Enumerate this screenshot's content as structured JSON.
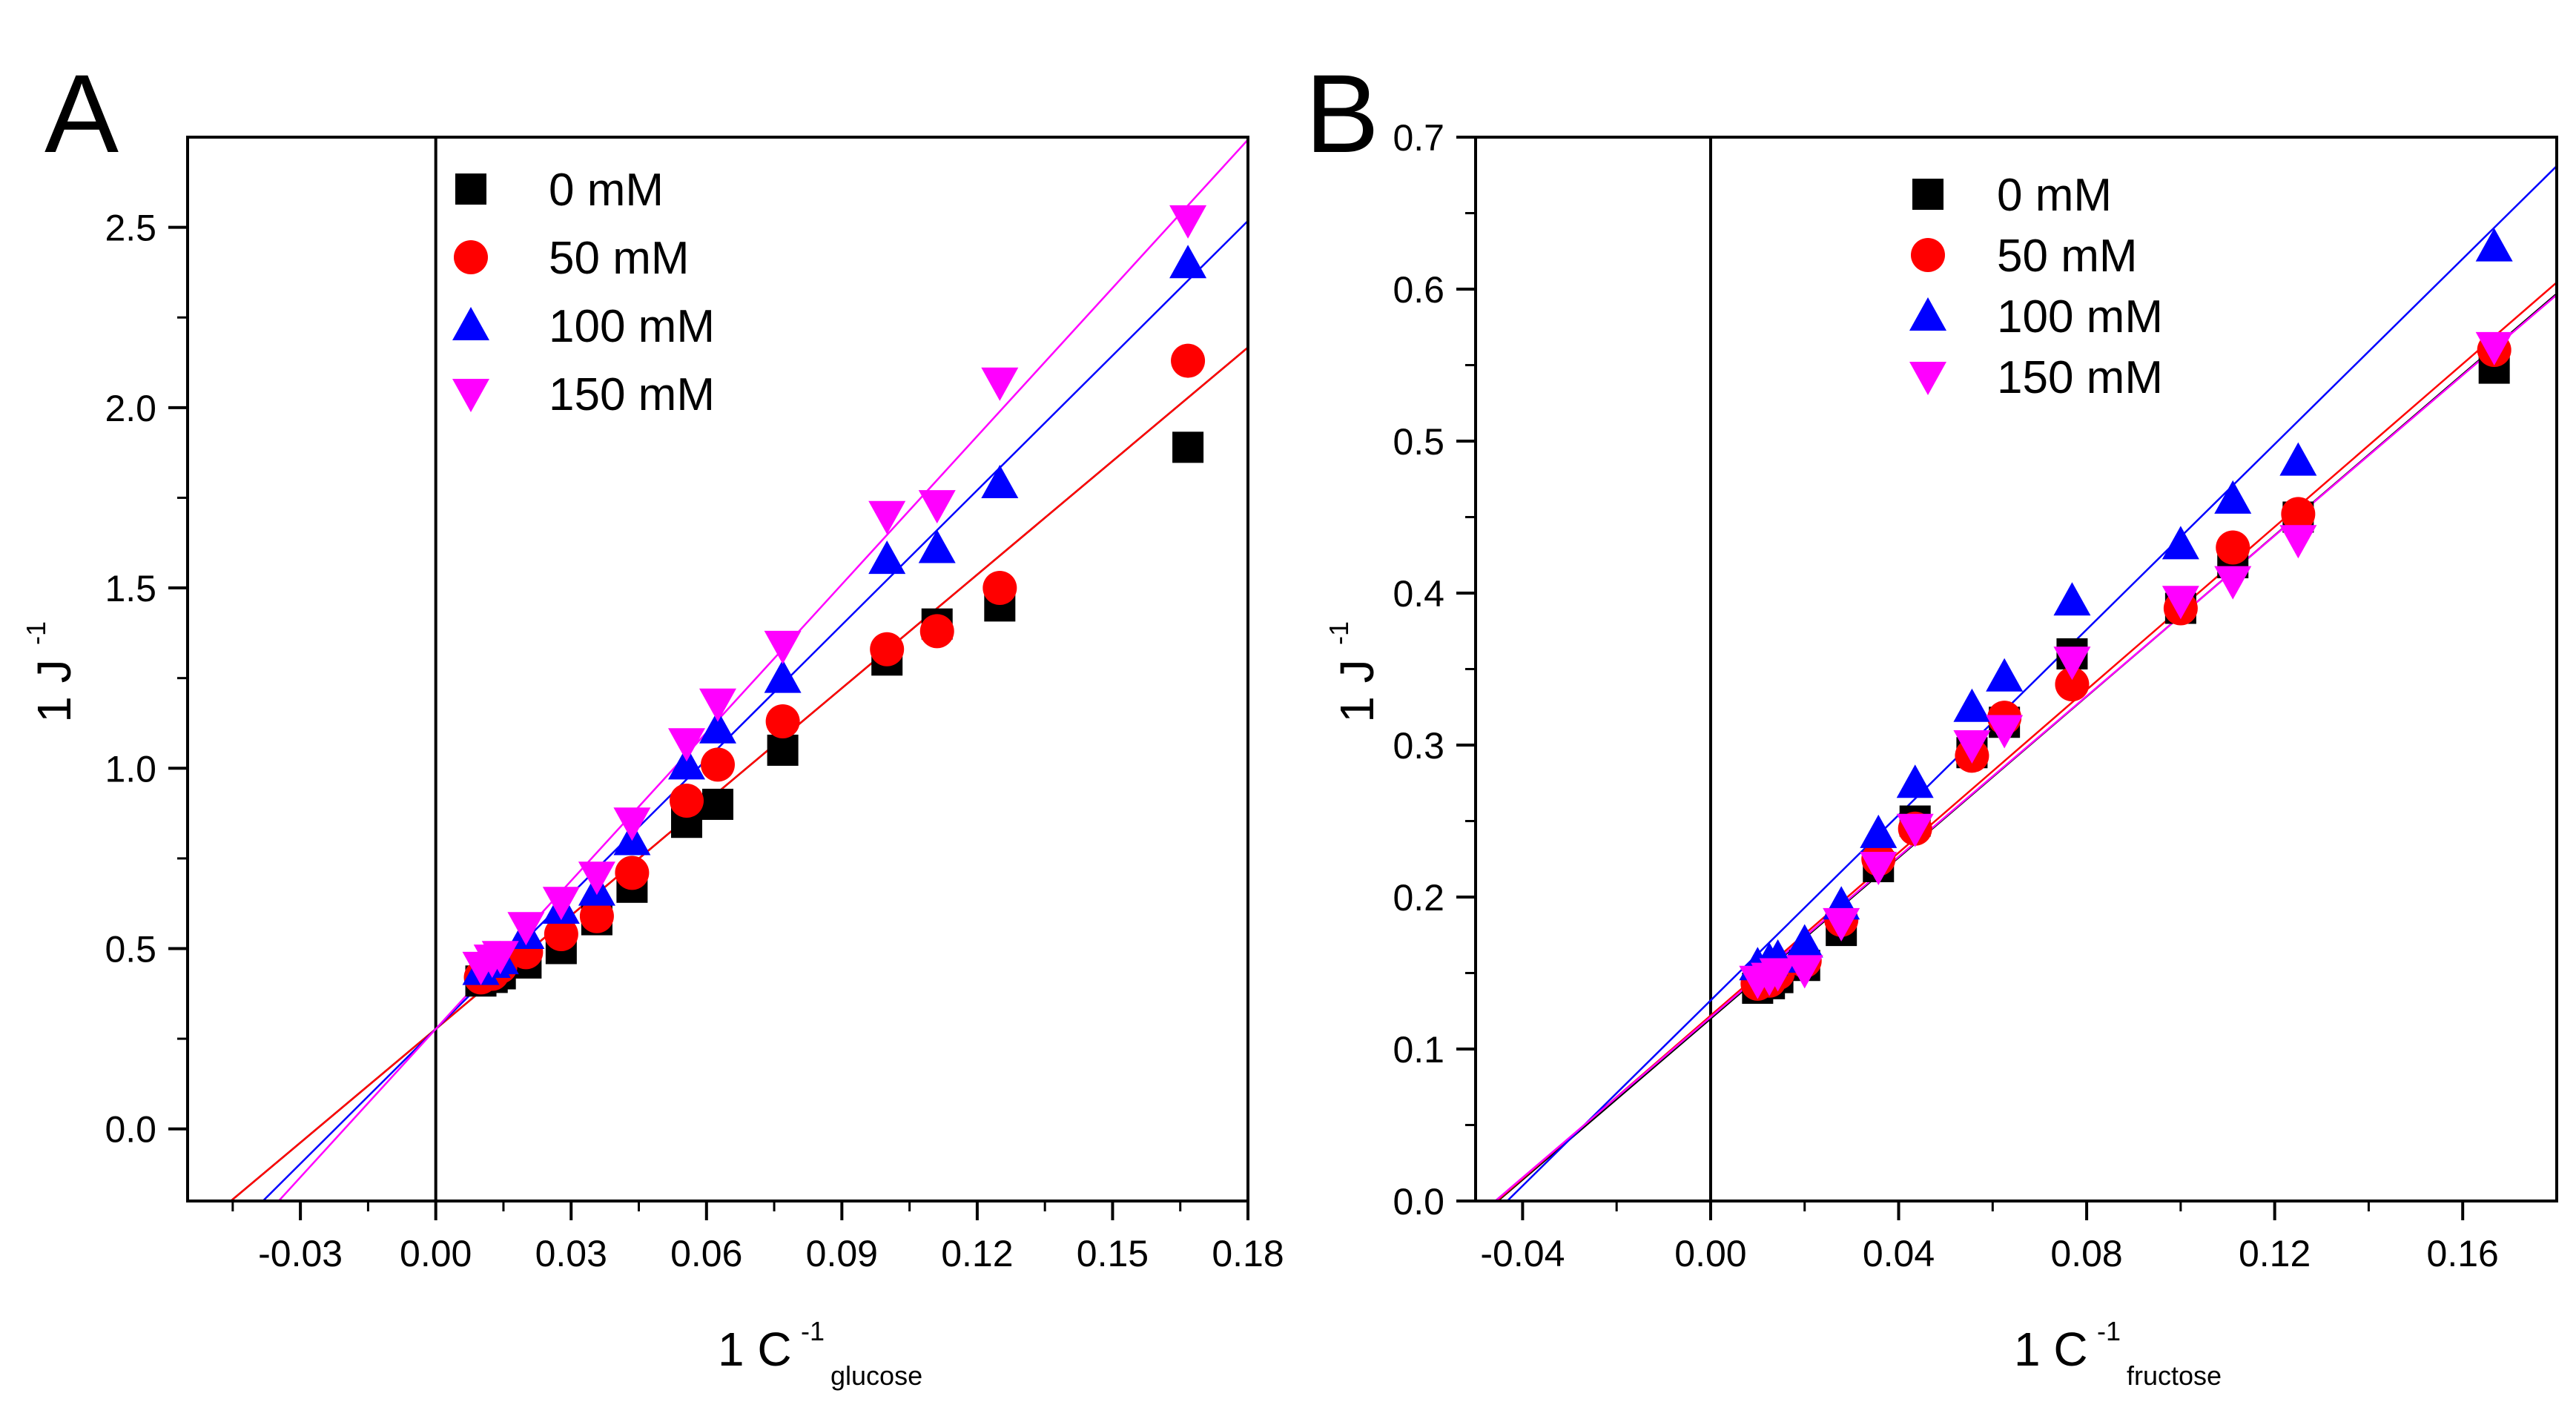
{
  "chart_data": [
    {
      "type": "scatter",
      "panel": "A",
      "xlabel_main": "1 C",
      "xlabel_sup": "-1",
      "xlabel_sub": "glucose",
      "ylabel_main": "1 J",
      "ylabel_sup": "-1",
      "xlim": [
        -0.055,
        0.18
      ],
      "ylim": [
        -0.2,
        2.75
      ],
      "xticks": [
        -0.03,
        0.0,
        0.03,
        0.06,
        0.09,
        0.12,
        0.15,
        0.18
      ],
      "xtick_labels": [
        "-0.03",
        "0.00",
        "0.03",
        "0.06",
        "0.09",
        "0.12",
        "0.15",
        "0.18"
      ],
      "xminor": [
        -0.045,
        -0.015,
        0.015,
        0.045,
        0.075,
        0.105,
        0.135,
        0.165
      ],
      "yticks": [
        0.0,
        0.5,
        1.0,
        1.5,
        2.0,
        2.5
      ],
      "ytick_labels": [
        "0.0",
        "0.5",
        "1.0",
        "1.5",
        "2.0",
        "2.5"
      ],
      "yminor": [
        0.25,
        0.75,
        1.25,
        1.75,
        2.25
      ],
      "legend_position": "top-left",
      "series": [
        {
          "name": "0 mM",
          "marker": "square",
          "color": "#000000",
          "x": [
            0.01,
            0.0125,
            0.0143,
            0.02,
            0.0278,
            0.0357,
            0.0435,
            0.0556,
            0.0625,
            0.0769,
            0.1,
            0.1111,
            0.125,
            0.1667
          ],
          "y": [
            0.41,
            0.42,
            0.43,
            0.46,
            0.5,
            0.58,
            0.67,
            0.85,
            0.9,
            1.05,
            1.3,
            1.4,
            1.45,
            1.89
          ],
          "fit": {
            "slope": 10.5,
            "intercept": 0.277
          }
        },
        {
          "name": "50 mM",
          "marker": "circle",
          "color": "#ff0000",
          "x": [
            0.01,
            0.0125,
            0.0143,
            0.02,
            0.0278,
            0.0357,
            0.0435,
            0.0556,
            0.0625,
            0.0769,
            0.1,
            0.1111,
            0.125,
            0.1667
          ],
          "y": [
            0.42,
            0.43,
            0.45,
            0.49,
            0.54,
            0.59,
            0.71,
            0.91,
            1.01,
            1.13,
            1.33,
            1.38,
            1.5,
            2.13
          ],
          "fit": {
            "slope": 10.5,
            "intercept": 0.277
          }
        },
        {
          "name": "100 mM",
          "marker": "triangle-up",
          "color": "#0000ff",
          "x": [
            0.01,
            0.0125,
            0.0143,
            0.02,
            0.0278,
            0.0357,
            0.0435,
            0.0556,
            0.0625,
            0.0769,
            0.1,
            0.1111,
            0.125,
            0.1667
          ],
          "y": [
            0.44,
            0.46,
            0.47,
            0.54,
            0.61,
            0.66,
            0.8,
            1.01,
            1.11,
            1.25,
            1.58,
            1.61,
            1.79,
            2.4
          ],
          "fit": {
            "slope": 12.45,
            "intercept": 0.277
          }
        },
        {
          "name": "150 mM",
          "marker": "triangle-down",
          "color": "#ff00ff",
          "x": [
            0.01,
            0.0125,
            0.0143,
            0.02,
            0.0278,
            0.0357,
            0.0435,
            0.0556,
            0.0625,
            0.0769,
            0.1,
            0.1111,
            0.125,
            0.1667
          ],
          "y": [
            0.45,
            0.47,
            0.48,
            0.56,
            0.63,
            0.7,
            0.85,
            1.07,
            1.18,
            1.34,
            1.7,
            1.73,
            2.07,
            2.52
          ],
          "fit": {
            "slope": 13.7,
            "intercept": 0.277
          }
        }
      ]
    },
    {
      "type": "scatter",
      "panel": "B",
      "xlabel_main": "1 C",
      "xlabel_sup": "-1",
      "xlabel_sub": "fructose",
      "ylabel_main": "1 J",
      "ylabel_sup": "-1",
      "xlim": [
        -0.05,
        0.18
      ],
      "ylim": [
        0.0,
        0.7
      ],
      "xticks": [
        -0.04,
        0.0,
        0.04,
        0.08,
        0.12,
        0.16
      ],
      "xtick_labels": [
        "-0.04",
        "0.00",
        "0.04",
        "0.08",
        "0.12",
        "0.16"
      ],
      "xminor": [
        -0.02,
        0.02,
        0.06,
        0.1,
        0.14
      ],
      "yticks": [
        0.0,
        0.1,
        0.2,
        0.3,
        0.4,
        0.5,
        0.6,
        0.7
      ],
      "ytick_labels": [
        "0.0",
        "0.1",
        "0.2",
        "0.3",
        "0.4",
        "0.5",
        "0.6",
        "0.7"
      ],
      "yminor": [
        0.05,
        0.15,
        0.25,
        0.35,
        0.45,
        0.55,
        0.65
      ],
      "legend_position": "top-center",
      "series": [
        {
          "name": "0 mM",
          "marker": "square",
          "color": "#000000",
          "x": [
            0.01,
            0.0125,
            0.0143,
            0.02,
            0.0278,
            0.0357,
            0.0435,
            0.0556,
            0.0625,
            0.0769,
            0.1,
            0.1111,
            0.125,
            0.1667
          ],
          "y": [
            0.14,
            0.143,
            0.147,
            0.155,
            0.178,
            0.22,
            0.25,
            0.295,
            0.315,
            0.36,
            0.39,
            0.42,
            0.45,
            0.548
          ],
          "fit": {
            "slope": 2.65,
            "intercept": 0.12
          }
        },
        {
          "name": "50 mM",
          "marker": "circle",
          "color": "#ff0000",
          "x": [
            0.01,
            0.0125,
            0.0143,
            0.02,
            0.0278,
            0.0357,
            0.0435,
            0.0556,
            0.0625,
            0.0769,
            0.1,
            0.1111,
            0.125,
            0.1667
          ],
          "y": [
            0.143,
            0.145,
            0.15,
            0.158,
            0.185,
            0.225,
            0.245,
            0.293,
            0.318,
            0.34,
            0.39,
            0.43,
            0.452,
            0.56
          ],
          "fit": {
            "slope": 2.68,
            "intercept": 0.122
          }
        },
        {
          "name": "100 mM",
          "marker": "triangle-up",
          "color": "#0000ff",
          "x": [
            0.01,
            0.0125,
            0.0143,
            0.02,
            0.0278,
            0.0357,
            0.0435,
            0.0556,
            0.0625,
            0.0769,
            0.1,
            0.1111,
            0.125,
            0.1667
          ],
          "y": [
            0.155,
            0.158,
            0.16,
            0.17,
            0.195,
            0.242,
            0.275,
            0.325,
            0.345,
            0.395,
            0.432,
            0.462,
            0.487,
            0.628
          ],
          "fit": {
            "slope": 3.05,
            "intercept": 0.132
          }
        },
        {
          "name": "150 mM",
          "marker": "triangle-down",
          "color": "#ff00ff",
          "x": [
            0.01,
            0.0125,
            0.0143,
            0.02,
            0.0278,
            0.0357,
            0.0435,
            0.0556,
            0.0625,
            0.0769,
            0.1,
            0.1111,
            0.125,
            0.1667
          ],
          "y": [
            0.145,
            0.147,
            0.15,
            0.152,
            0.183,
            0.22,
            0.245,
            0.3,
            0.31,
            0.355,
            0.395,
            0.408,
            0.435,
            0.562
          ],
          "fit": {
            "slope": 2.64,
            "intercept": 0.121
          }
        }
      ]
    }
  ]
}
